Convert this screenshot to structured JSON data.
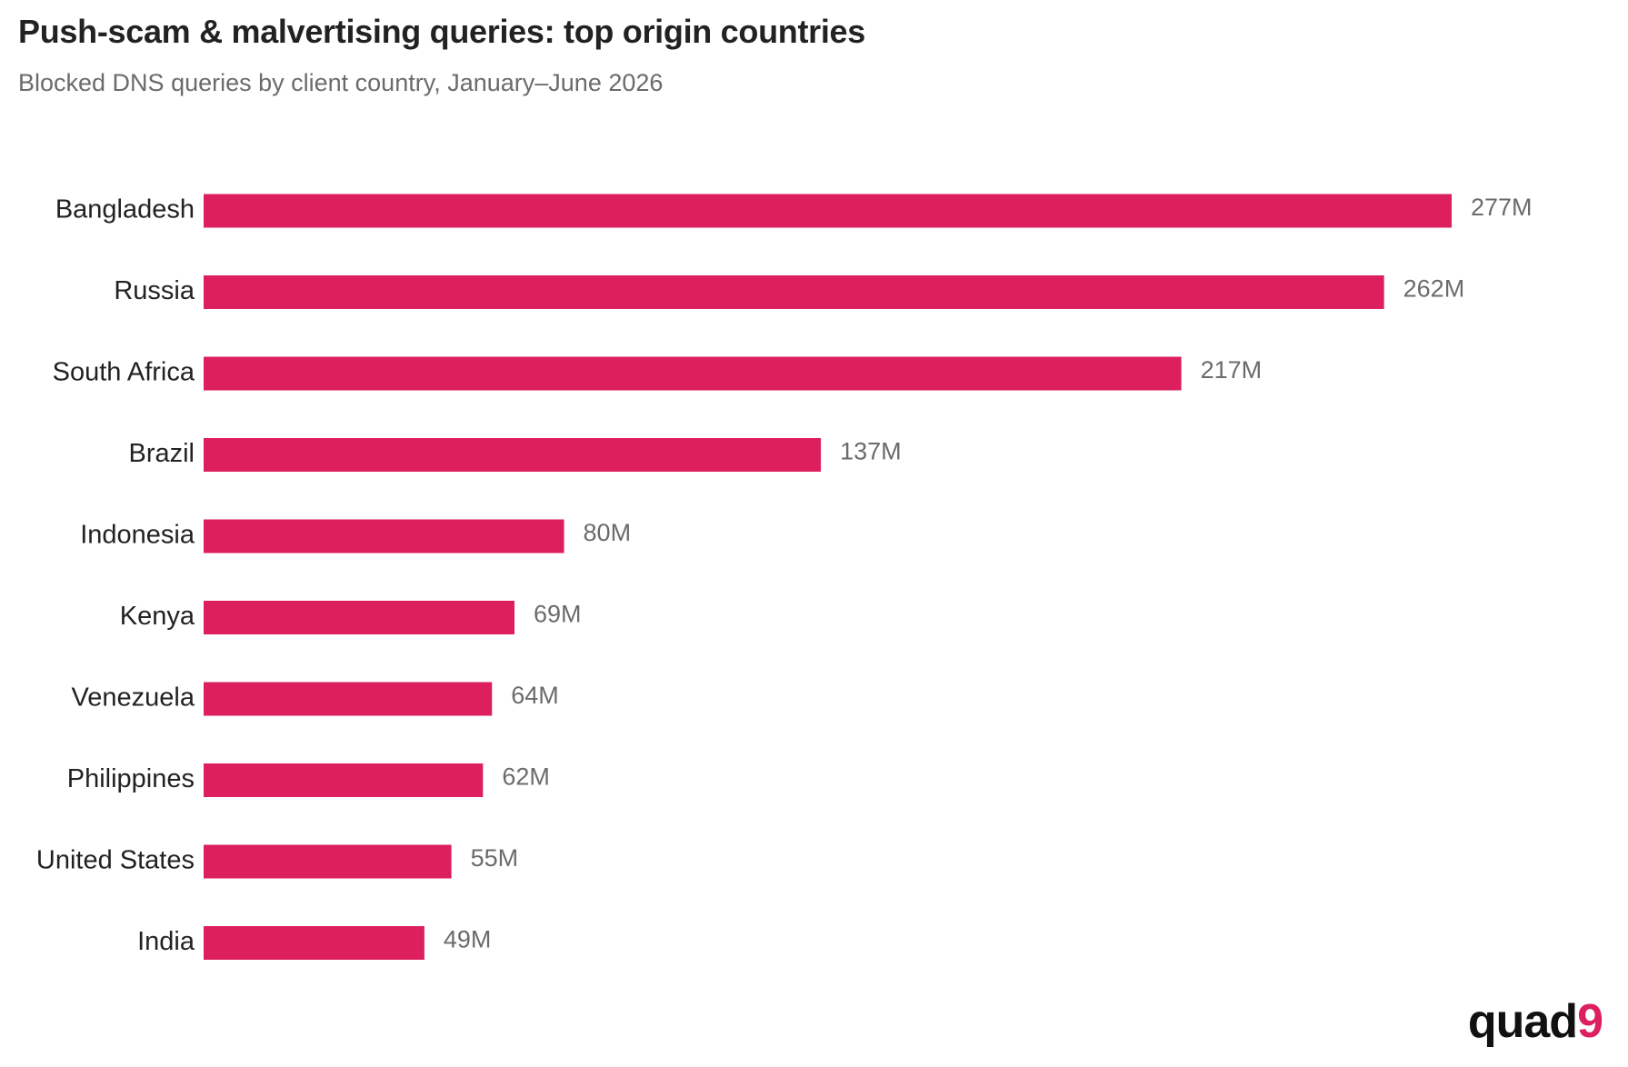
{
  "header": {
    "title": "Push-scam & malvertising queries: top origin countries",
    "subtitle": "Blocked DNS queries by client country, January–June 2026"
  },
  "brand": {
    "word": "quad",
    "mark": "9",
    "word_color": "#111111",
    "mark_color": "#dd1f5e"
  },
  "chart_data": {
    "type": "bar",
    "orientation": "horizontal",
    "categories": [
      "Bangladesh",
      "Russia",
      "South Africa",
      "Brazil",
      "Indonesia",
      "Kenya",
      "Venezuela",
      "Philippines",
      "United States",
      "India"
    ],
    "values": [
      277,
      262,
      217,
      137,
      80,
      69,
      64,
      62,
      55,
      49
    ],
    "value_labels": [
      "277M",
      "262M",
      "217M",
      "137M",
      "80M",
      "69M",
      "64M",
      "62M",
      "55M",
      "49M"
    ],
    "unit": "M",
    "bar_color": "#dd1f5e",
    "grid": false,
    "legend": "none",
    "xlim": [
      0,
      277
    ]
  }
}
